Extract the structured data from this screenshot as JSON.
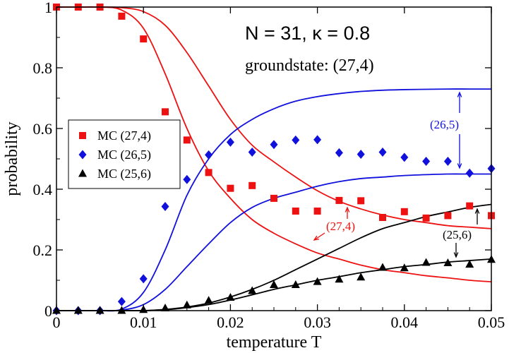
{
  "chart_data": {
    "type": "scatter",
    "title_line1": "N = 31,  κ = 0.8",
    "title_line2": "groundstate: (27,4)",
    "xlabel": "temperature T",
    "ylabel": "probability",
    "xlim": [
      0,
      0.05
    ],
    "ylim": [
      0,
      1
    ],
    "xticks": [
      0,
      0.01,
      0.02,
      0.03,
      0.04,
      0.05
    ],
    "xtick_labels": [
      "0",
      "0.01",
      "0.02",
      "0.03",
      "0.04",
      "0.05"
    ],
    "yticks": [
      0,
      0.2,
      0.4,
      0.6,
      0.8,
      1
    ],
    "ytick_labels": [
      "0",
      "0.2",
      "0.4",
      "0.6",
      "0.8",
      "1"
    ],
    "legend_position": "left-middle",
    "colors": {
      "red": "#ee1111",
      "blue": "#1111dd",
      "black": "#000000"
    },
    "series": [
      {
        "name": "MC (27,4)",
        "marker": "square",
        "color": "#ee1111",
        "x": [
          0,
          0.0025,
          0.005,
          0.0075,
          0.01,
          0.0125,
          0.015,
          0.0175,
          0.02,
          0.0225,
          0.025,
          0.0275,
          0.03,
          0.0325,
          0.035,
          0.0375,
          0.04,
          0.0425,
          0.045,
          0.0475,
          0.05
        ],
        "y": [
          1.0,
          1.0,
          1.0,
          0.97,
          0.895,
          0.655,
          0.562,
          0.455,
          0.403,
          0.412,
          0.37,
          0.328,
          0.328,
          0.363,
          0.362,
          0.307,
          0.326,
          0.305,
          0.313,
          0.345,
          0.313
        ]
      },
      {
        "name": "MC (26,5)",
        "marker": "diamond",
        "color": "#1111dd",
        "x": [
          0,
          0.0025,
          0.005,
          0.0075,
          0.01,
          0.0125,
          0.015,
          0.0175,
          0.02,
          0.0225,
          0.025,
          0.0275,
          0.03,
          0.0325,
          0.035,
          0.0375,
          0.04,
          0.0425,
          0.045,
          0.0475,
          0.05
        ],
        "y": [
          0.0,
          0.0,
          0.0,
          0.03,
          0.105,
          0.343,
          0.432,
          0.513,
          0.555,
          0.522,
          0.547,
          0.562,
          0.563,
          0.52,
          0.515,
          0.522,
          0.505,
          0.492,
          0.492,
          0.453,
          0.468
        ]
      },
      {
        "name": "MC (25,6)",
        "marker": "triangle",
        "color": "#000000",
        "x": [
          0,
          0.0025,
          0.005,
          0.0075,
          0.01,
          0.0125,
          0.015,
          0.0175,
          0.02,
          0.0225,
          0.025,
          0.0275,
          0.03,
          0.0325,
          0.035,
          0.0375,
          0.04,
          0.0425,
          0.045,
          0.0475,
          0.05
        ],
        "y": [
          0.0,
          0.0,
          0.0,
          0.0,
          0.003,
          0.008,
          0.018,
          0.033,
          0.043,
          0.065,
          0.085,
          0.085,
          0.095,
          0.103,
          0.11,
          0.142,
          0.14,
          0.158,
          0.157,
          0.152,
          0.168
        ]
      }
    ],
    "curves": [
      {
        "name": "theory-27-4-upper",
        "color": "#ee1111",
        "x": [
          0,
          0.0025,
          0.005,
          0.0075,
          0.01,
          0.0125,
          0.015,
          0.0175,
          0.02,
          0.0225,
          0.025,
          0.0275,
          0.03,
          0.0325,
          0.035,
          0.0375,
          0.04,
          0.0425,
          0.045,
          0.0475,
          0.05
        ],
        "y": [
          1.0,
          1.0,
          1.0,
          0.998,
          0.985,
          0.94,
          0.85,
          0.74,
          0.63,
          0.545,
          0.49,
          0.44,
          0.395,
          0.36,
          0.335,
          0.315,
          0.3,
          0.29,
          0.28,
          0.275,
          0.27
        ]
      },
      {
        "name": "theory-27-4-lower",
        "color": "#ee1111",
        "x": [
          0,
          0.0025,
          0.005,
          0.0075,
          0.01,
          0.0125,
          0.015,
          0.0175,
          0.02,
          0.0225,
          0.025,
          0.0275,
          0.03,
          0.0325,
          0.035,
          0.0375,
          0.04,
          0.0425,
          0.045,
          0.0475,
          0.05
        ],
        "y": [
          1.0,
          1.0,
          1.0,
          0.99,
          0.93,
          0.78,
          0.6,
          0.46,
          0.37,
          0.3,
          0.255,
          0.22,
          0.19,
          0.17,
          0.15,
          0.135,
          0.125,
          0.115,
          0.108,
          0.1,
          0.095
        ]
      },
      {
        "name": "theory-26-5-upper",
        "color": "#1111dd",
        "x": [
          0,
          0.0025,
          0.005,
          0.0075,
          0.01,
          0.0125,
          0.015,
          0.0175,
          0.02,
          0.0225,
          0.025,
          0.0275,
          0.03,
          0.0325,
          0.035,
          0.0375,
          0.04,
          0.0425,
          0.045,
          0.0475,
          0.05
        ],
        "y": [
          0.0,
          0.0,
          0.0,
          0.005,
          0.06,
          0.2,
          0.38,
          0.5,
          0.58,
          0.63,
          0.665,
          0.69,
          0.705,
          0.715,
          0.722,
          0.726,
          0.728,
          0.729,
          0.73,
          0.73,
          0.73
        ]
      },
      {
        "name": "theory-26-5-lower",
        "color": "#1111dd",
        "x": [
          0,
          0.0025,
          0.005,
          0.0075,
          0.01,
          0.0125,
          0.015,
          0.0175,
          0.02,
          0.0225,
          0.025,
          0.0275,
          0.03,
          0.0325,
          0.035,
          0.0375,
          0.04,
          0.0425,
          0.045,
          0.0475,
          0.05
        ],
        "y": [
          0.0,
          0.0,
          0.0,
          0.002,
          0.02,
          0.07,
          0.145,
          0.22,
          0.29,
          0.34,
          0.37,
          0.39,
          0.41,
          0.425,
          0.435,
          0.44,
          0.445,
          0.448,
          0.45,
          0.45,
          0.45
        ]
      },
      {
        "name": "theory-25-6-upper",
        "color": "#000000",
        "x": [
          0,
          0.0025,
          0.005,
          0.0075,
          0.01,
          0.0125,
          0.015,
          0.0175,
          0.02,
          0.0225,
          0.025,
          0.0275,
          0.03,
          0.0325,
          0.035,
          0.0375,
          0.04,
          0.0425,
          0.045,
          0.0475,
          0.05
        ],
        "y": [
          0.0,
          0.0,
          0.0,
          0.0,
          0.0,
          0.004,
          0.012,
          0.025,
          0.045,
          0.07,
          0.1,
          0.135,
          0.17,
          0.205,
          0.24,
          0.27,
          0.29,
          0.31,
          0.325,
          0.34,
          0.35
        ]
      },
      {
        "name": "theory-25-6-lower",
        "color": "#000000",
        "x": [
          0,
          0.0025,
          0.005,
          0.0075,
          0.01,
          0.0125,
          0.015,
          0.0175,
          0.02,
          0.0225,
          0.025,
          0.0275,
          0.03,
          0.0325,
          0.035,
          0.0375,
          0.04,
          0.0425,
          0.045,
          0.0475,
          0.05
        ],
        "y": [
          0.0,
          0.0,
          0.0,
          0.0,
          0.0,
          0.003,
          0.01,
          0.02,
          0.035,
          0.052,
          0.07,
          0.085,
          0.1,
          0.112,
          0.125,
          0.135,
          0.145,
          0.152,
          0.16,
          0.165,
          0.17
        ]
      }
    ],
    "annotations": [
      {
        "label": "(26,5)",
        "color": "#1111dd"
      },
      {
        "label": "(27,4)",
        "color": "#ee1111"
      },
      {
        "label": "(25,6)",
        "color": "#000000"
      }
    ]
  }
}
